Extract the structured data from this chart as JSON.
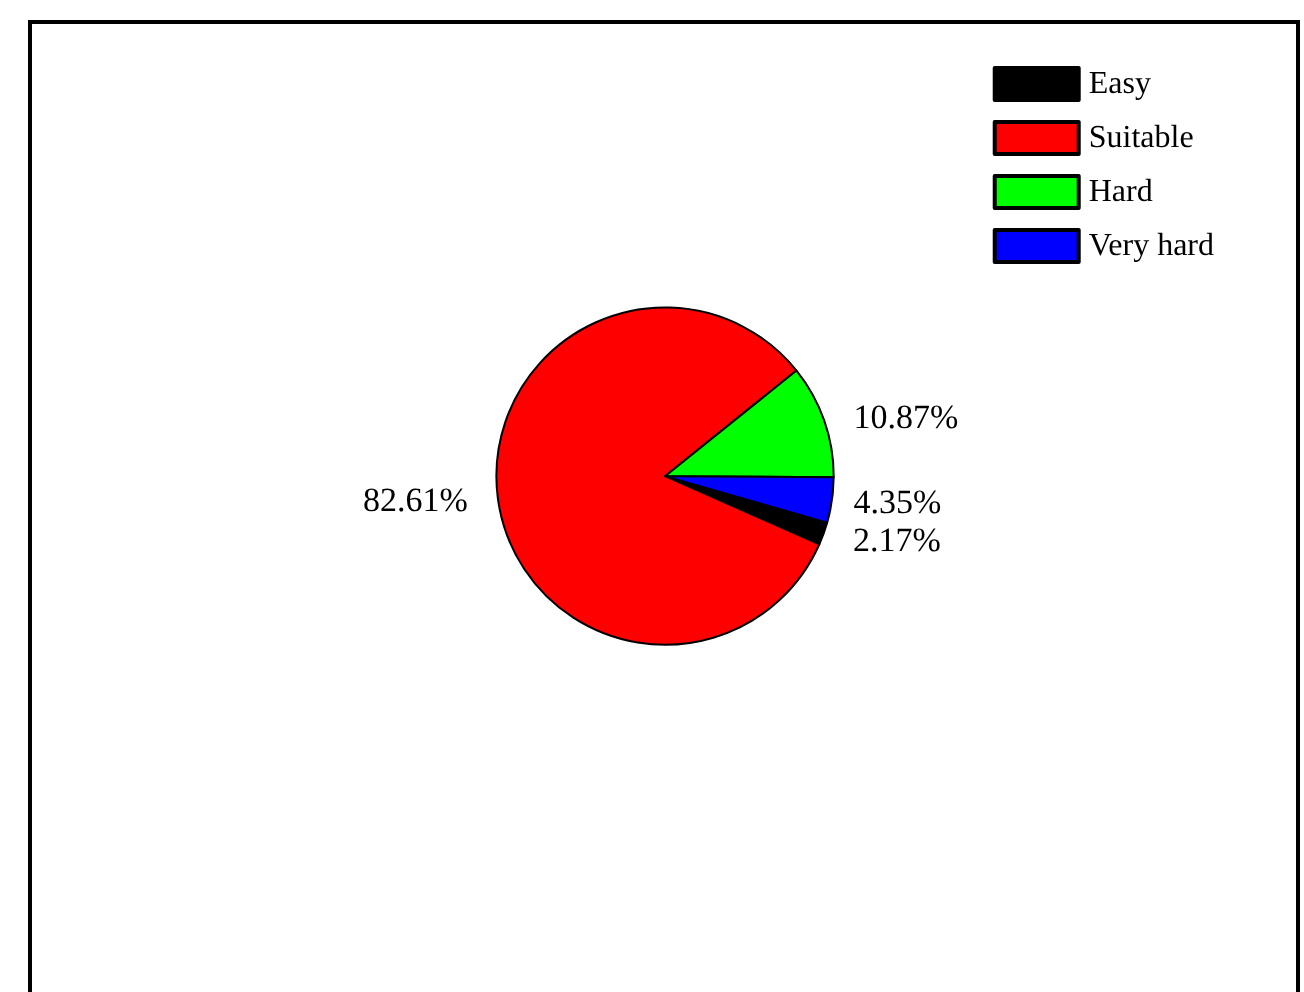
{
  "chart_data": {
    "type": "pie",
    "categories": [
      "Easy",
      "Suitable",
      "Hard",
      "Very hard"
    ],
    "values": [
      2.17,
      82.61,
      10.87,
      4.35
    ],
    "value_labels": [
      "2.17%",
      "82.61%",
      "10.87%",
      "4.35%"
    ],
    "colors": [
      "#000000",
      "#ff0000",
      "#00ff00",
      "#0000ff"
    ],
    "legend": "top right"
  }
}
